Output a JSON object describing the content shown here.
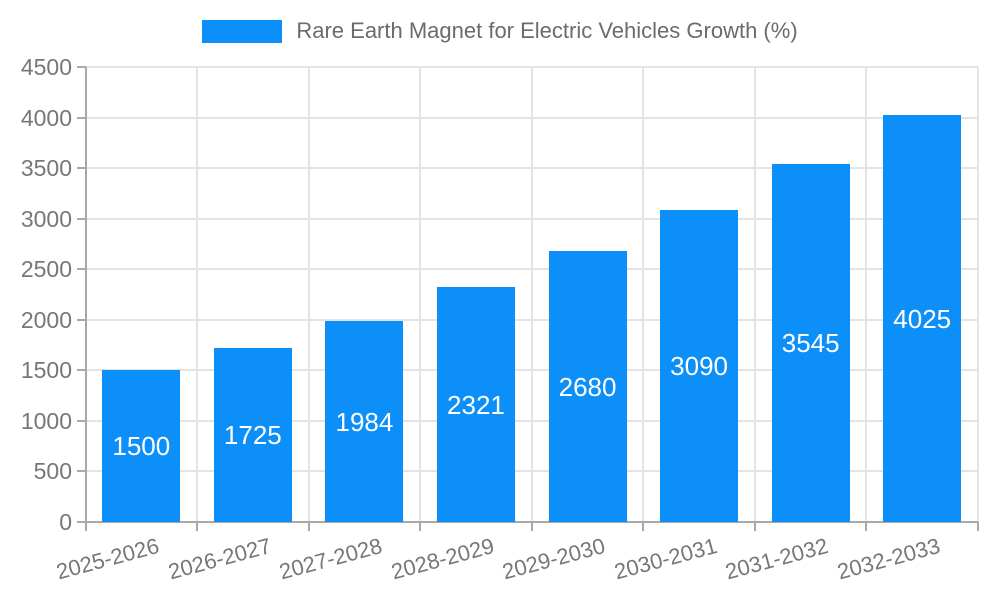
{
  "legend": {
    "label": "Rare Earth Magnet for Electric Vehicles Growth (%)"
  },
  "colors": {
    "bar": "#0c8ff9",
    "grid": "#e4e4e4",
    "axis": "#a9a9a9",
    "axis_text": "#777777",
    "legend_text": "#6b6b6b",
    "bar_label_text": "#ffffff",
    "background": "#ffffff"
  },
  "chart_data": {
    "type": "bar",
    "title": "Rare Earth Magnet for Electric Vehicles Growth (%)",
    "categories": [
      "2025-2026",
      "2026-2027",
      "2027-2028",
      "2028-2029",
      "2029-2030",
      "2030-2031",
      "2031-2032",
      "2032-2033"
    ],
    "values": [
      1500,
      1725,
      1984,
      2321,
      2680,
      3090,
      3545,
      4025
    ],
    "xlabel": "",
    "ylabel": "",
    "ylim": [
      0,
      4500
    ],
    "ytick_step": 500,
    "grid": "both",
    "legend_position": "top-center",
    "bar_value_labels": "inside-middle",
    "x_label_rotation_deg": -15
  }
}
